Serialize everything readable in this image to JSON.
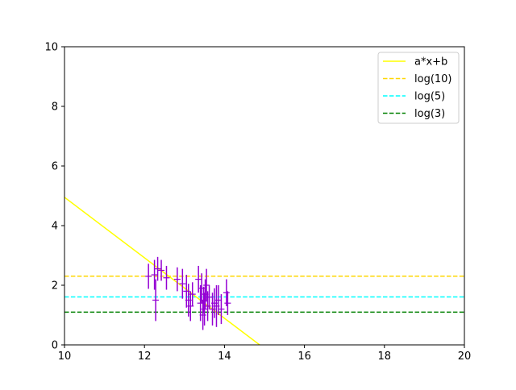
{
  "chart_data": {
    "type": "scatter",
    "title": "",
    "xlabel": "",
    "ylabel": "",
    "xlim": [
      10,
      20
    ],
    "ylim": [
      0,
      10
    ],
    "xticks": [
      "10",
      "12",
      "14",
      "16",
      "18",
      "20"
    ],
    "yticks": [
      "0",
      "2",
      "4",
      "6",
      "8",
      "10"
    ],
    "grid": false,
    "legend_position": "top-right",
    "line": {
      "name": "a*x+b",
      "color": "#ffff00",
      "points": [
        [
          10,
          4.95
        ],
        [
          14.88,
          0
        ]
      ]
    },
    "hlines": [
      {
        "name": "log(10)",
        "value": 2.303,
        "color": "#ffd700"
      },
      {
        "name": "log(5)",
        "value": 1.609,
        "color": "#00ffff"
      },
      {
        "name": "log(3)",
        "value": 1.099,
        "color": "#008000"
      }
    ],
    "scatter": {
      "color": "#9400d3",
      "points": [
        {
          "x": 12.1,
          "y": 2.3,
          "err": 0.42
        },
        {
          "x": 12.25,
          "y": 2.35,
          "err": 0.5
        },
        {
          "x": 12.28,
          "y": 1.5,
          "err": 0.7
        },
        {
          "x": 12.33,
          "y": 2.55,
          "err": 0.4
        },
        {
          "x": 12.42,
          "y": 2.5,
          "err": 0.35
        },
        {
          "x": 12.55,
          "y": 2.25,
          "err": 0.4
        },
        {
          "x": 12.82,
          "y": 2.2,
          "err": 0.4
        },
        {
          "x": 12.95,
          "y": 2.05,
          "err": 0.5
        },
        {
          "x": 13.05,
          "y": 1.8,
          "err": 0.55
        },
        {
          "x": 13.1,
          "y": 1.5,
          "err": 0.55
        },
        {
          "x": 13.15,
          "y": 1.3,
          "err": 0.5
        },
        {
          "x": 13.2,
          "y": 1.7,
          "err": 0.4
        },
        {
          "x": 13.35,
          "y": 2.2,
          "err": 0.45
        },
        {
          "x": 13.4,
          "y": 1.4,
          "err": 0.6
        },
        {
          "x": 13.43,
          "y": 1.9,
          "err": 0.5
        },
        {
          "x": 13.46,
          "y": 1.0,
          "err": 0.5
        },
        {
          "x": 13.48,
          "y": 1.5,
          "err": 0.45
        },
        {
          "x": 13.5,
          "y": 1.2,
          "err": 0.55
        },
        {
          "x": 13.52,
          "y": 1.7,
          "err": 0.5
        },
        {
          "x": 13.55,
          "y": 2.0,
          "err": 0.55
        },
        {
          "x": 13.58,
          "y": 1.3,
          "err": 0.5
        },
        {
          "x": 13.62,
          "y": 1.6,
          "err": 0.4
        },
        {
          "x": 13.7,
          "y": 1.2,
          "err": 0.55
        },
        {
          "x": 13.75,
          "y": 1.4,
          "err": 0.5
        },
        {
          "x": 13.8,
          "y": 1.3,
          "err": 0.7
        },
        {
          "x": 13.85,
          "y": 1.5,
          "err": 0.5
        },
        {
          "x": 13.92,
          "y": 1.2,
          "err": 0.5
        },
        {
          "x": 14.05,
          "y": 1.75,
          "err": 0.45
        },
        {
          "x": 14.08,
          "y": 1.4,
          "err": 0.4
        }
      ]
    }
  }
}
